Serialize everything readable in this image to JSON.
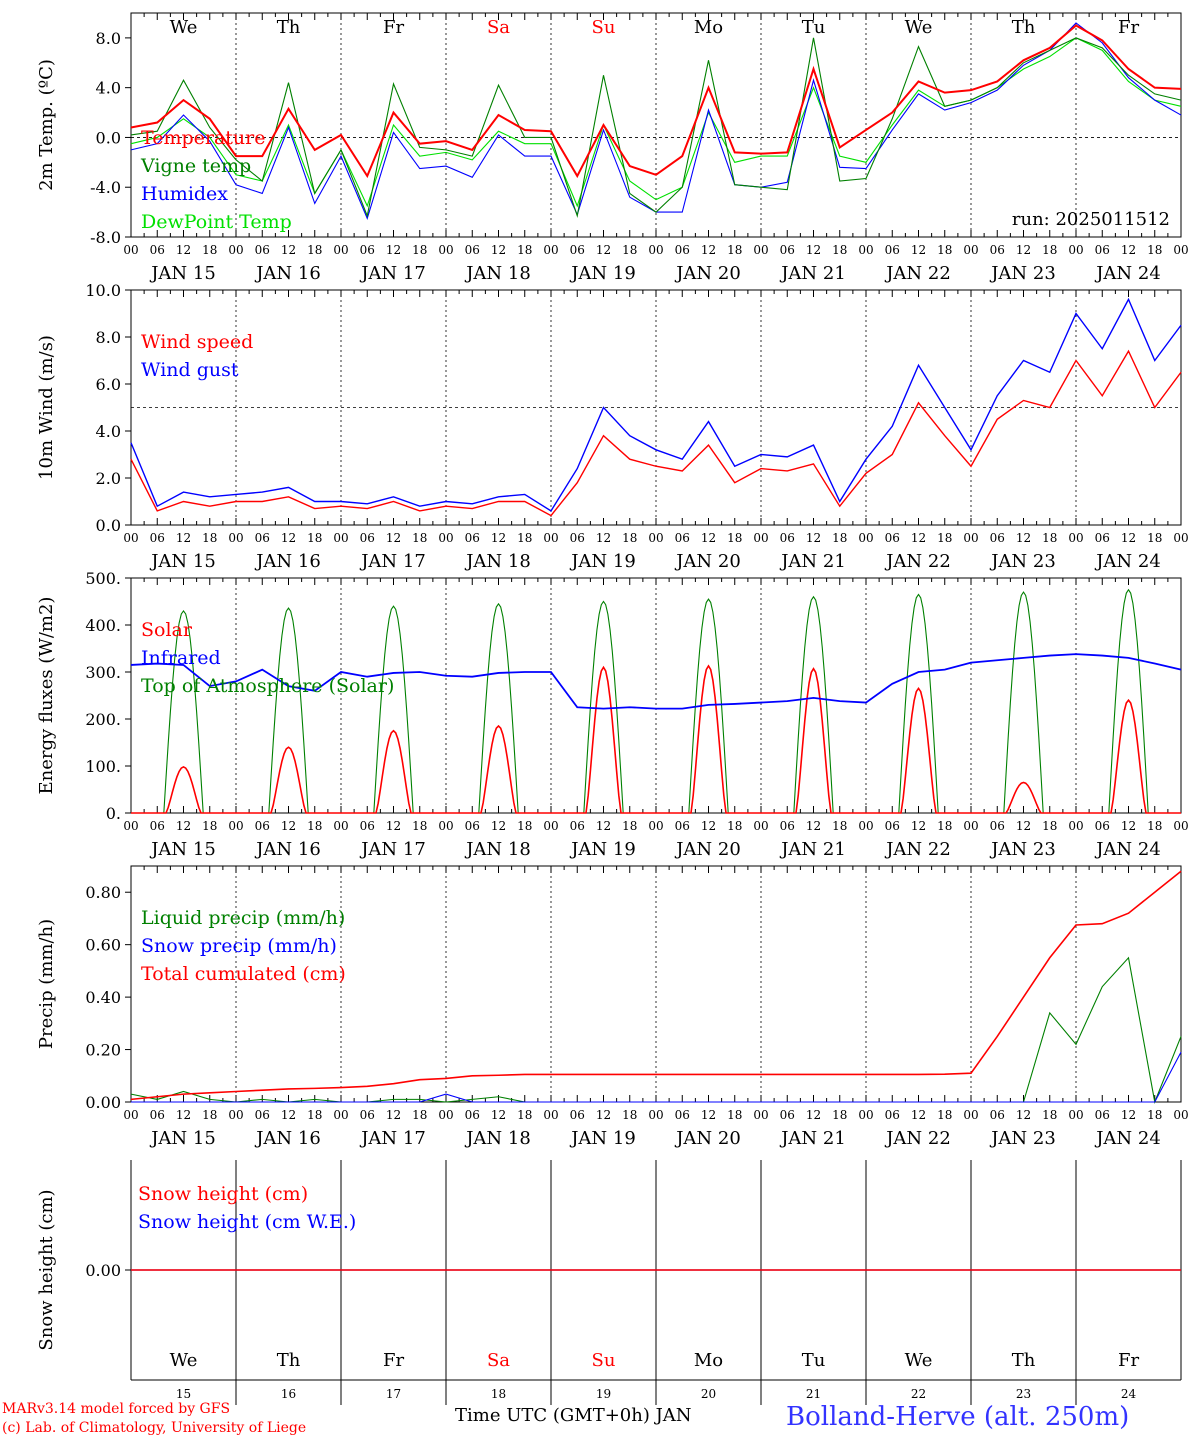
{
  "footer": {
    "model_line": "MARv3.14 model forced by GFS",
    "lab_line": "(c) Lab. of Climatology, University of Liege",
    "time_axis_title": "Time UTC (GMT+0h) JAN",
    "station": "Bolland-Herve (alt. 250m)"
  },
  "colors": {
    "red": "#ff0000",
    "green": "#008000",
    "blue": "#0000ff",
    "lightgreen": "#00e000"
  },
  "chart_data": [
    {
      "type": "line",
      "ylabel": "2m Temp. (ºC)",
      "ylim": [
        -8,
        10
      ],
      "yticks": [
        "8.0",
        "4.0",
        "0.0",
        "-4.0",
        "-8.0"
      ],
      "ytick_values": [
        8,
        4,
        0,
        -4,
        -8
      ],
      "reference_line": 0,
      "run_label": "run: 2025011512",
      "weekday_labels": [
        "We",
        "Th",
        "Fr",
        "Sa",
        "Su",
        "Mo",
        "Tu",
        "We",
        "Th",
        "Fr"
      ],
      "weekday_colors": [
        "#000",
        "#000",
        "#000",
        "#ff0000",
        "#ff0000",
        "#000",
        "#000",
        "#000",
        "#000",
        "#000"
      ],
      "x_hour_ticks": [
        "00",
        "06",
        "12",
        "18"
      ],
      "x_day_labels": [
        "JAN 15",
        "JAN 16",
        "JAN 17",
        "JAN 18",
        "JAN 19",
        "JAN 20",
        "JAN 21",
        "JAN 22",
        "JAN 23",
        "JAN 24"
      ],
      "x_hours": [
        0,
        6,
        12,
        18,
        24,
        30,
        36,
        42,
        48,
        54,
        60,
        66,
        72,
        78,
        84,
        90,
        96,
        102,
        108,
        114,
        120,
        126,
        132,
        138,
        144,
        150,
        156,
        162,
        168,
        174,
        180,
        186,
        192,
        198,
        204,
        210,
        216,
        222,
        228,
        234,
        240
      ],
      "series": [
        {
          "name": "Temperature",
          "color": "#ff0000",
          "values": [
            0.8,
            1.2,
            3.0,
            1.5,
            -1.5,
            -1.5,
            2.3,
            -1.0,
            0.2,
            -3.1,
            2.0,
            -0.5,
            -0.3,
            -1.0,
            1.8,
            0.6,
            0.5,
            -3.1,
            1.0,
            -2.3,
            -3.0,
            -1.5,
            4.0,
            -1.2,
            -1.3,
            -1.2,
            5.5,
            -0.8,
            0.6,
            2.0,
            4.5,
            3.6,
            3.8,
            4.5,
            6.2,
            7.2,
            9.0,
            7.8,
            5.5,
            4.0,
            3.9
          ]
        },
        {
          "name": "Vigne temp",
          "color": "#008000",
          "values": [
            0.2,
            0.5,
            4.6,
            0.8,
            -1.8,
            -3.5,
            4.4,
            -4.5,
            -1.0,
            -6.3,
            4.3,
            -0.8,
            -1.0,
            -1.5,
            4.2,
            0.0,
            0.0,
            -6.3,
            5.0,
            -4.5,
            -6.0,
            -4.0,
            6.2,
            -3.8,
            -4.0,
            -4.2,
            8.0,
            -3.5,
            -3.3,
            1.5,
            7.3,
            2.5,
            3.0,
            4.0,
            6.0,
            7.0,
            8.0,
            7.2,
            5.0,
            3.5,
            3.0
          ]
        },
        {
          "name": "Humidex",
          "color": "#0000ff",
          "values": [
            -1.0,
            -0.5,
            1.8,
            -0.3,
            -3.8,
            -4.5,
            0.8,
            -5.3,
            -1.5,
            -6.5,
            0.4,
            -2.5,
            -2.3,
            -3.2,
            0.2,
            -1.5,
            -1.5,
            -6.2,
            0.6,
            -4.8,
            -6.0,
            -6.0,
            2.2,
            -3.8,
            -4.0,
            -3.6,
            4.6,
            -2.4,
            -2.5,
            0.6,
            3.5,
            2.2,
            2.8,
            3.8,
            5.8,
            7.0,
            9.2,
            7.6,
            4.8,
            3.0,
            1.8
          ]
        },
        {
          "name": "DewPoint Temp",
          "color": "#00e000",
          "values": [
            -0.5,
            0.0,
            1.5,
            0.0,
            -3.0,
            -3.5,
            1.0,
            -4.5,
            -1.0,
            -5.5,
            1.0,
            -1.5,
            -1.2,
            -1.8,
            0.5,
            -0.5,
            -0.5,
            -5.5,
            1.0,
            -3.5,
            -5.0,
            -4.0,
            2.0,
            -2.0,
            -1.5,
            -1.5,
            4.0,
            -1.5,
            -2.0,
            1.0,
            3.8,
            2.5,
            3.0,
            4.0,
            5.5,
            6.5,
            8.0,
            7.0,
            4.5,
            3.0,
            2.5
          ]
        }
      ]
    },
    {
      "type": "line",
      "ylabel": "10m Wind (m/s)",
      "ylim": [
        0,
        10
      ],
      "yticks": [
        "10.0",
        "8.0",
        "6.0",
        "4.0",
        "2.0",
        "0.0"
      ],
      "ytick_values": [
        10,
        8,
        6,
        4,
        2,
        0
      ],
      "reference_line": 5,
      "x_hour_ticks": [
        "00",
        "06",
        "12",
        "18"
      ],
      "x_day_labels": [
        "JAN 15",
        "JAN 16",
        "JAN 17",
        "JAN 18",
        "JAN 19",
        "JAN 20",
        "JAN 21",
        "JAN 22",
        "JAN 23",
        "JAN 24"
      ],
      "x_hours": [
        0,
        6,
        12,
        18,
        24,
        30,
        36,
        42,
        48,
        54,
        60,
        66,
        72,
        78,
        84,
        90,
        96,
        102,
        108,
        114,
        120,
        126,
        132,
        138,
        144,
        150,
        156,
        162,
        168,
        174,
        180,
        186,
        192,
        198,
        204,
        210,
        216,
        222,
        228,
        234,
        240
      ],
      "series": [
        {
          "name": "Wind speed",
          "color": "#ff0000",
          "values": [
            2.8,
            0.6,
            1.0,
            0.8,
            1.0,
            1.0,
            1.2,
            0.7,
            0.8,
            0.7,
            1.0,
            0.6,
            0.8,
            0.7,
            1.0,
            1.0,
            0.4,
            1.8,
            3.8,
            2.8,
            2.5,
            2.3,
            3.4,
            1.8,
            2.4,
            2.3,
            2.6,
            0.8,
            2.2,
            3.0,
            5.2,
            3.8,
            2.5,
            4.5,
            5.3,
            5.0,
            7.0,
            5.5,
            7.4,
            5.0,
            6.5
          ]
        },
        {
          "name": "Wind gust",
          "color": "#0000ff",
          "values": [
            3.5,
            0.8,
            1.4,
            1.2,
            1.3,
            1.4,
            1.6,
            1.0,
            1.0,
            0.9,
            1.2,
            0.8,
            1.0,
            0.9,
            1.2,
            1.3,
            0.6,
            2.4,
            5.0,
            3.8,
            3.2,
            2.8,
            4.4,
            2.5,
            3.0,
            2.9,
            3.4,
            1.0,
            2.8,
            4.2,
            6.8,
            5.0,
            3.2,
            5.5,
            7.0,
            6.5,
            9.0,
            7.5,
            9.6,
            7.0,
            8.5
          ]
        }
      ]
    },
    {
      "type": "line",
      "ylabel": "Energy fluxes (W/m2)",
      "ylim": [
        0,
        500
      ],
      "yticks": [
        "500.",
        "400.",
        "300.",
        "200.",
        "100.",
        "0."
      ],
      "ytick_values": [
        500,
        400,
        300,
        200,
        100,
        0
      ],
      "x_hour_ticks": [
        "00",
        "06",
        "12",
        "18"
      ],
      "x_day_labels": [
        "JAN 15",
        "JAN 16",
        "JAN 17",
        "JAN 18",
        "JAN 19",
        "JAN 20",
        "JAN 21",
        "JAN 22",
        "JAN 23",
        "JAN 24"
      ],
      "x_hours": [
        0,
        6,
        12,
        18,
        24,
        30,
        36,
        42,
        48,
        54,
        60,
        66,
        72,
        78,
        84,
        90,
        96,
        102,
        108,
        114,
        120,
        126,
        132,
        138,
        144,
        150,
        156,
        162,
        168,
        174,
        180,
        186,
        192,
        198,
        204,
        210,
        216,
        222,
        228,
        234,
        240
      ],
      "series": [
        {
          "name": "Solar",
          "color": "#ff0000",
          "daily_peaks": [
            98,
            140,
            175,
            185,
            310,
            313,
            307,
            265,
            65,
            240
          ]
        },
        {
          "name": "Infrared",
          "color": "#0000ff",
          "values": [
            315,
            318,
            315,
            270,
            280,
            305,
            270,
            260,
            300,
            290,
            298,
            300,
            292,
            290,
            298,
            300,
            300,
            225,
            222,
            225,
            222,
            222,
            230,
            232,
            235,
            238,
            245,
            238,
            235,
            275,
            300,
            305,
            320,
            325,
            330,
            335,
            338,
            335,
            330,
            318,
            305
          ]
        },
        {
          "name": "Top of Atmosphere (Solar)",
          "color": "#008000",
          "daily_peaks": [
            430,
            436,
            440,
            445,
            450,
            455,
            460,
            465,
            470,
            475
          ]
        }
      ]
    },
    {
      "type": "line",
      "ylabel": "Precip (mm/h)",
      "ylim": [
        0,
        0.9
      ],
      "yticks": [
        "0.80",
        "0.60",
        "0.40",
        "0.20",
        "0.00"
      ],
      "ytick_values": [
        0.8,
        0.6,
        0.4,
        0.2,
        0.0
      ],
      "x_hour_ticks": [
        "00",
        "06",
        "12",
        "18"
      ],
      "x_day_labels": [
        "JAN 15",
        "JAN 16",
        "JAN 17",
        "JAN 18",
        "JAN 19",
        "JAN 20",
        "JAN 21",
        "JAN 22",
        "JAN 23",
        "JAN 24"
      ],
      "x_hours": [
        0,
        6,
        12,
        18,
        24,
        30,
        36,
        42,
        48,
        54,
        60,
        66,
        72,
        78,
        84,
        90,
        96,
        102,
        108,
        114,
        120,
        126,
        132,
        138,
        144,
        150,
        156,
        162,
        168,
        174,
        180,
        186,
        192,
        198,
        204,
        210,
        216,
        222,
        228,
        234,
        240
      ],
      "series": [
        {
          "name": "Liquid precip (mm/h)",
          "color": "#008000",
          "values": [
            0.03,
            0.01,
            0.04,
            0.01,
            0.0,
            0.01,
            0.0,
            0.01,
            0.0,
            0.0,
            0.01,
            0.01,
            0.0,
            0.01,
            0.02,
            0.0,
            0.0,
            0.0,
            0.0,
            0.0,
            0.0,
            0.0,
            0.0,
            0.0,
            0.0,
            0.0,
            0.0,
            0.0,
            0.0,
            0.0,
            0.0,
            0.0,
            0.0,
            0.0,
            0.0,
            0.34,
            0.22,
            0.44,
            0.55,
            0.0,
            0.25
          ]
        },
        {
          "name": "Snow precip (mm/h)",
          "color": "#0000ff",
          "values": [
            0.0,
            0.0,
            0.0,
            0.0,
            0.0,
            0.0,
            0.0,
            0.0,
            0.0,
            0.0,
            0.0,
            0.0,
            0.03,
            0.0,
            0.0,
            0.0,
            0.0,
            0.0,
            0.0,
            0.0,
            0.0,
            0.0,
            0.0,
            0.0,
            0.0,
            0.0,
            0.0,
            0.0,
            0.0,
            0.0,
            0.0,
            0.0,
            0.0,
            0.0,
            0.0,
            0.0,
            0.0,
            0.0,
            0.0,
            0.0,
            0.19
          ]
        },
        {
          "name": "Total cumulated (cm)",
          "color": "#ff0000",
          "values": [
            0.01,
            0.02,
            0.03,
            0.035,
            0.04,
            0.045,
            0.05,
            0.052,
            0.055,
            0.06,
            0.07,
            0.085,
            0.09,
            0.1,
            0.102,
            0.105,
            0.105,
            0.105,
            0.105,
            0.105,
            0.105,
            0.105,
            0.105,
            0.105,
            0.105,
            0.105,
            0.105,
            0.105,
            0.105,
            0.105,
            0.105,
            0.106,
            0.11,
            0.25,
            0.4,
            0.55,
            0.675,
            0.68,
            0.72,
            0.8,
            0.88
          ]
        }
      ]
    },
    {
      "type": "line",
      "ylabel": "Snow height (cm)",
      "yticks": [
        "0.00"
      ],
      "ytick_values": [
        0
      ],
      "weekday_labels": [
        "We",
        "Th",
        "Fr",
        "Sa",
        "Su",
        "Mo",
        "Tu",
        "We",
        "Th",
        "Fr"
      ],
      "weekday_colors": [
        "#000",
        "#000",
        "#000",
        "#ff0000",
        "#ff0000",
        "#000",
        "#000",
        "#000",
        "#000",
        "#000"
      ],
      "day_numbers": [
        "15",
        "16",
        "17",
        "18",
        "19",
        "20",
        "21",
        "22",
        "23",
        "24"
      ],
      "series": [
        {
          "name": "Snow height (cm)",
          "color": "#ff0000",
          "values": [
            0,
            0
          ]
        },
        {
          "name": "Snow height (cm W.E.)",
          "color": "#0000ff",
          "values": [
            0,
            0
          ]
        }
      ]
    }
  ]
}
